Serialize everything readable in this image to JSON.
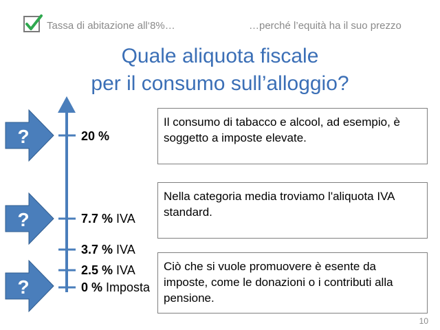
{
  "header": {
    "left_text": "Tassa di abitazione all‘8%…",
    "right_text": "…perché l’equità ha il suo prezzo"
  },
  "title": {
    "line1": "Quale aliquota fiscale",
    "line2": "per il consumo sull’alloggio?"
  },
  "ticks": [
    {
      "value": "20 %",
      "suffix": ""
    },
    {
      "value": "7.7 %",
      "suffix": " IVA"
    },
    {
      "value": "3.7 %",
      "suffix": " IVA"
    },
    {
      "value": "2.5 %",
      "suffix": " IVA"
    },
    {
      "value": "0 %",
      "suffix": " Imposta"
    }
  ],
  "question_mark": "?",
  "boxes": [
    "Il consumo di tabacco e alcool, ad esempio, è soggetto a imposte elevate.",
    "Nella categoria media troviamo l'aliquota IVA standard.",
    "Ciò che si vuole promuovere è esente da imposte, come le donazioni o i contributi alla pensione."
  ],
  "page_number": "10",
  "colors": {
    "accent": "#3b6fb6",
    "arrow_fill": "#4a7ebb",
    "check": "#2fa84f"
  }
}
